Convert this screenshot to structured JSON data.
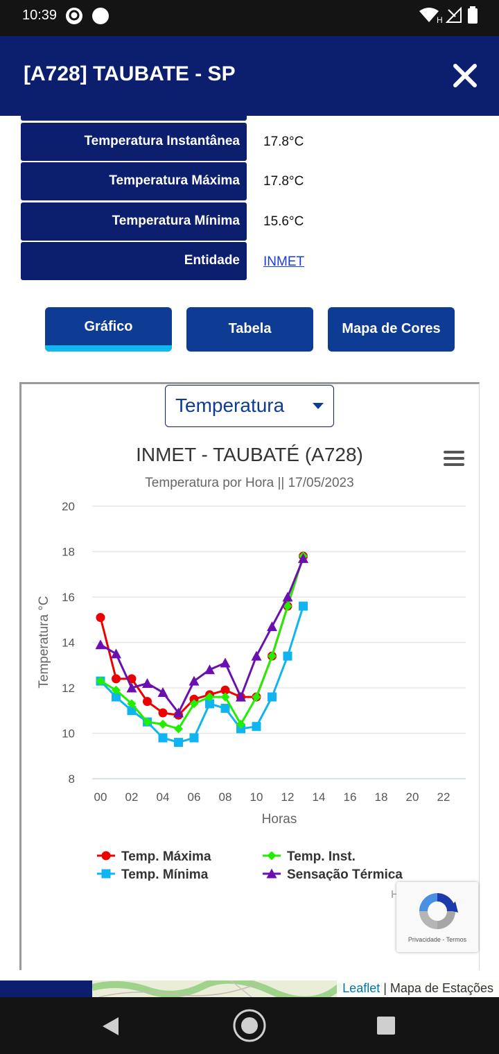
{
  "status_bar": {
    "time": "10:39",
    "network_label": "H"
  },
  "header": {
    "title": "[A728] TAUBATE - SP"
  },
  "info_rows": [
    {
      "label": "Temperatura Instantânea",
      "value": "17.8°C"
    },
    {
      "label": "Temperatura Máxima",
      "value": "17.8°C"
    },
    {
      "label": "Temperatura Mínima",
      "value": "15.6°C"
    },
    {
      "label": "Entidade",
      "value": "INMET"
    }
  ],
  "tabs": [
    {
      "label": "Gráfico",
      "active": true
    },
    {
      "label": "Tabela",
      "active": false
    },
    {
      "label": "Mapa de Cores",
      "active": false
    }
  ],
  "select": {
    "value": "Temperatura"
  },
  "chart_data": {
    "type": "line",
    "title": "INMET - TAUBATÉ (A728)",
    "subtitle": "Temperatura por Hora || 17/05/2023",
    "xlabel": "Horas",
    "ylabel": "Temperatura °C",
    "xlim": [
      0,
      23
    ],
    "ylim": [
      8,
      20
    ],
    "x_ticks": [
      "00",
      "02",
      "04",
      "06",
      "08",
      "10",
      "12",
      "14",
      "16",
      "18",
      "20",
      "22"
    ],
    "y_ticks": [
      8,
      10,
      12,
      14,
      16,
      18,
      20
    ],
    "grid": true,
    "legend_position": "bottom",
    "x": [
      0,
      1,
      2,
      3,
      4,
      5,
      6,
      7,
      8,
      9,
      10,
      11,
      12,
      13
    ],
    "series": [
      {
        "name": "Temp. Máxima",
        "color": "#ee0000",
        "marker": "circle",
        "values": [
          15.1,
          12.4,
          12.4,
          11.4,
          10.9,
          10.8,
          11.5,
          11.7,
          11.9,
          11.6,
          11.6,
          13.4,
          15.6,
          17.8
        ]
      },
      {
        "name": "Temp. Inst.",
        "color": "#22ee00",
        "marker": "diamond",
        "values": [
          12.3,
          11.9,
          11.3,
          10.5,
          10.4,
          10.2,
          11.3,
          11.6,
          11.6,
          10.4,
          11.6,
          13.4,
          15.6,
          17.8
        ]
      },
      {
        "name": "Temp. Mínima",
        "color": "#10b4f0",
        "marker": "square",
        "values": [
          12.3,
          11.6,
          11.0,
          10.5,
          9.8,
          9.6,
          9.8,
          11.3,
          11.1,
          10.2,
          10.3,
          11.6,
          13.4,
          15.6
        ]
      },
      {
        "name": "Sensação Térmica",
        "color": "#6a10b0",
        "marker": "triangle",
        "values": [
          13.9,
          13.5,
          12.0,
          12.2,
          11.8,
          10.9,
          12.3,
          12.8,
          13.1,
          11.6,
          13.4,
          14.7,
          16.0,
          17.7
        ]
      }
    ]
  },
  "hint_char": "H",
  "recaptcha": {
    "links": "Privacidade - Termos"
  },
  "map": {
    "attribution_link": "Leaflet",
    "attribution_text": "| Mapa de Estações"
  }
}
